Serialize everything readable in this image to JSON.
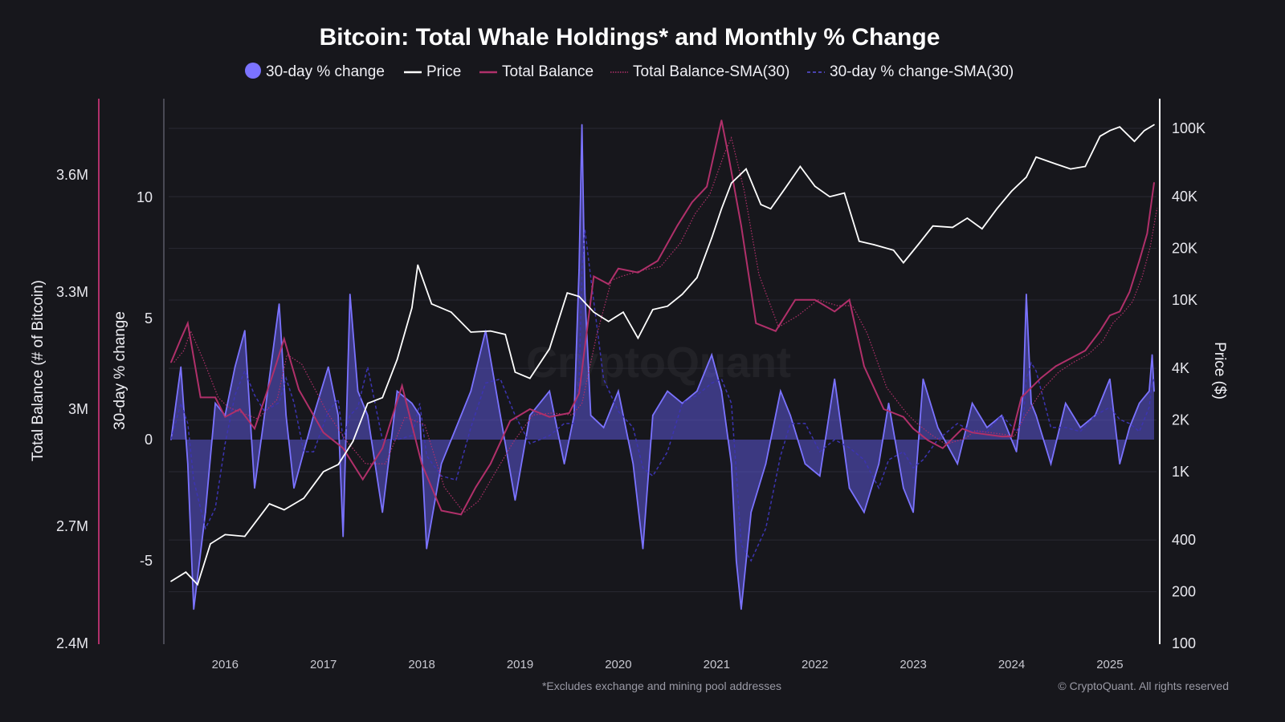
{
  "chart_data": {
    "type": "line",
    "title": "Bitcoin: Total Whale Holdings* and Monthly % Change",
    "footnote": "*Excludes exchange and mining pool addresses",
    "copyright": "© CryptoQuant. All rights reserved",
    "watermark": "CryptoQuant",
    "legend": [
      {
        "label": "30-day % change",
        "color": "#7b73ff",
        "style": "dot"
      },
      {
        "label": "Price",
        "color": "#ffffff",
        "style": "solid"
      },
      {
        "label": "Total Balance",
        "color": "#b0306a",
        "style": "solid"
      },
      {
        "label": "Total Balance-SMA(30)",
        "color": "#b0306a",
        "style": "dotted"
      },
      {
        "label": "30-day % change-SMA(30)",
        "color": "#5a50e0",
        "style": "dashed"
      }
    ],
    "legend_position": "top-center",
    "x_axis": {
      "ticks": [
        "2016",
        "2017",
        "2018",
        "2019",
        "2020",
        "2021",
        "2022",
        "2023",
        "2024",
        "2025"
      ],
      "range": [
        2015.45,
        2025.45
      ]
    },
    "y_axis_balance": {
      "label": "Total Balance (# of Bitcoin)",
      "ticks": [
        "2.4M",
        "2.7M",
        "3M",
        "3.3M",
        "3.6M"
      ],
      "tick_values": [
        2.4,
        2.7,
        3.0,
        3.3,
        3.6
      ],
      "range": [
        2.4,
        3.8
      ]
    },
    "y_axis_change": {
      "label": "30-day % change",
      "ticks": [
        "-5",
        "0",
        "5",
        "10"
      ],
      "tick_values": [
        -5,
        0,
        5,
        10
      ],
      "range": [
        -8.5,
        14
      ]
    },
    "y_axis_price": {
      "label": "Price ($)",
      "scale": "log",
      "ticks": [
        "100",
        "200",
        "400",
        "1K",
        "2K",
        "4K",
        "10K",
        "20K",
        "40K",
        "100K"
      ],
      "tick_values": [
        100,
        200,
        400,
        1000,
        2000,
        4000,
        10000,
        20000,
        40000,
        100000
      ],
      "range": [
        100,
        110000
      ]
    },
    "series": [
      {
        "name": "Price",
        "x": [
          2015.45,
          2015.6,
          2015.72,
          2015.85,
          2016.0,
          2016.2,
          2016.45,
          2016.6,
          2016.8,
          2017.0,
          2017.15,
          2017.3,
          2017.45,
          2017.6,
          2017.75,
          2017.9,
          2017.96,
          2018.1,
          2018.3,
          2018.5,
          2018.7,
          2018.85,
          2018.95,
          2019.1,
          2019.3,
          2019.48,
          2019.6,
          2019.75,
          2019.9,
          2020.05,
          2020.2,
          2020.35,
          2020.5,
          2020.65,
          2020.8,
          2020.95,
          2021.05,
          2021.15,
          2021.3,
          2021.45,
          2021.55,
          2021.7,
          2021.85,
          2022.0,
          2022.15,
          2022.3,
          2022.45,
          2022.6,
          2022.8,
          2022.9,
          2023.05,
          2023.2,
          2023.4,
          2023.55,
          2023.7,
          2023.85,
          2024.0,
          2024.15,
          2024.25,
          2024.45,
          2024.6,
          2024.75,
          2024.9,
          2025.0,
          2025.1,
          2025.25,
          2025.35,
          2025.45
        ],
        "values": [
          230,
          260,
          220,
          380,
          430,
          420,
          650,
          600,
          700,
          1000,
          1100,
          1500,
          2500,
          2700,
          4500,
          9000,
          16000,
          9500,
          8500,
          6500,
          6600,
          6300,
          3800,
          3500,
          5200,
          11000,
          10500,
          8500,
          7500,
          8500,
          6000,
          8800,
          9200,
          10800,
          13500,
          23000,
          34000,
          48000,
          58000,
          36000,
          34000,
          45000,
          60000,
          46000,
          40000,
          42000,
          22000,
          21000,
          19500,
          16500,
          21000,
          27000,
          26500,
          30000,
          26000,
          34000,
          43000,
          52000,
          68000,
          62000,
          58000,
          60000,
          90000,
          97000,
          102000,
          84000,
          97000,
          105000
        ]
      },
      {
        "name": "Total Balance",
        "unit": "M BTC",
        "x": [
          2015.45,
          2015.55,
          2015.62,
          2015.75,
          2015.9,
          2016.0,
          2016.15,
          2016.3,
          2016.5,
          2016.6,
          2016.75,
          2017.0,
          2017.2,
          2017.4,
          2017.6,
          2017.8,
          2018.0,
          2018.2,
          2018.4,
          2018.55,
          2018.7,
          2018.9,
          2019.1,
          2019.3,
          2019.5,
          2019.6,
          2019.75,
          2019.9,
          2020.0,
          2020.2,
          2020.4,
          2020.6,
          2020.75,
          2020.9,
          2021.05,
          2021.12,
          2021.25,
          2021.4,
          2021.6,
          2021.8,
          2022.0,
          2022.2,
          2022.35,
          2022.5,
          2022.7,
          2022.9,
          2023.0,
          2023.15,
          2023.3,
          2023.5,
          2023.6,
          2023.9,
          2024.0,
          2024.1,
          2024.3,
          2024.45,
          2024.6,
          2024.75,
          2024.9,
          2025.0,
          2025.1,
          2025.2,
          2025.3,
          2025.38,
          2025.45
        ],
        "values": [
          3.12,
          3.18,
          3.22,
          3.03,
          3.03,
          2.98,
          3.0,
          2.95,
          3.1,
          3.18,
          3.05,
          2.94,
          2.9,
          2.82,
          2.9,
          3.06,
          2.86,
          2.74,
          2.73,
          2.8,
          2.86,
          2.97,
          3.0,
          2.98,
          2.99,
          3.04,
          3.34,
          3.32,
          3.36,
          3.35,
          3.38,
          3.47,
          3.53,
          3.57,
          3.74,
          3.65,
          3.47,
          3.22,
          3.2,
          3.28,
          3.28,
          3.25,
          3.28,
          3.11,
          3.0,
          2.98,
          2.95,
          2.92,
          2.9,
          2.95,
          2.94,
          2.93,
          2.93,
          3.03,
          3.08,
          3.11,
          3.13,
          3.15,
          3.2,
          3.24,
          3.25,
          3.3,
          3.38,
          3.45,
          3.58
        ]
      },
      {
        "name": "30-day % change",
        "x": [
          2015.45,
          2015.55,
          2015.62,
          2015.68,
          2015.8,
          2015.9,
          2016.0,
          2016.1,
          2016.2,
          2016.3,
          2016.4,
          2016.55,
          2016.62,
          2016.7,
          2016.8,
          2016.9,
          2017.05,
          2017.15,
          2017.2,
          2017.27,
          2017.35,
          2017.45,
          2017.6,
          2017.75,
          2017.9,
          2017.98,
          2018.05,
          2018.2,
          2018.35,
          2018.5,
          2018.65,
          2018.8,
          2018.95,
          2019.1,
          2019.3,
          2019.45,
          2019.55,
          2019.6,
          2019.63,
          2019.66,
          2019.72,
          2019.85,
          2020.0,
          2020.15,
          2020.25,
          2020.35,
          2020.5,
          2020.65,
          2020.8,
          2020.95,
          2021.05,
          2021.15,
          2021.2,
          2021.25,
          2021.35,
          2021.5,
          2021.65,
          2021.75,
          2021.9,
          2022.05,
          2022.2,
          2022.35,
          2022.5,
          2022.65,
          2022.75,
          2022.9,
          2023.0,
          2023.1,
          2023.25,
          2023.45,
          2023.6,
          2023.75,
          2023.9,
          2024.05,
          2024.12,
          2024.15,
          2024.2,
          2024.25,
          2024.4,
          2024.55,
          2024.7,
          2024.85,
          2025.0,
          2025.1,
          2025.2,
          2025.3,
          2025.4,
          2025.43,
          2025.45
        ],
        "values": [
          0,
          3,
          -1,
          -7,
          -3,
          1.5,
          1,
          3,
          4.5,
          -2,
          1,
          5.6,
          1,
          -2,
          -0.5,
          1,
          3,
          1,
          -4,
          6,
          2,
          1,
          -3,
          2,
          1.5,
          1,
          -4.5,
          -1,
          0.5,
          2,
          4.5,
          1,
          -2.5,
          1,
          2,
          -1,
          1,
          7,
          13,
          6,
          1,
          0.5,
          2,
          -1,
          -4.5,
          1,
          2,
          1.5,
          2,
          3.5,
          2,
          -1,
          -5,
          -7,
          -3,
          -1,
          2,
          1,
          -1,
          -1.5,
          2.5,
          -2,
          -3,
          -1,
          1.5,
          -2,
          -3,
          2.5,
          0.5,
          -1,
          1.5,
          0.5,
          1,
          -0.5,
          2,
          6,
          1.5,
          1,
          -1,
          1.5,
          0.5,
          1,
          2.5,
          -1,
          0.5,
          1.5,
          2,
          3.5,
          2
        ]
      }
    ]
  }
}
